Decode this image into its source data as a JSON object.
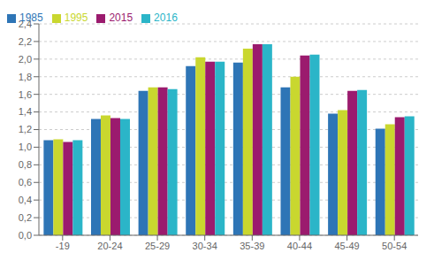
{
  "chart_data": {
    "type": "bar",
    "categories": [
      "-19",
      "20-24",
      "25-29",
      "30-34",
      "35-39",
      "40-44",
      "45-49",
      "50-54"
    ],
    "series": [
      {
        "name": "1985",
        "color": "#2E75B6",
        "values": [
          1.08,
          1.32,
          1.64,
          1.92,
          1.96,
          1.68,
          1.38,
          1.21
        ]
      },
      {
        "name": "1995",
        "color": "#C9D72F",
        "values": [
          1.09,
          1.36,
          1.68,
          2.02,
          2.12,
          1.8,
          1.42,
          1.26
        ]
      },
      {
        "name": "2015",
        "color": "#9B1B6E",
        "values": [
          1.06,
          1.33,
          1.68,
          1.97,
          2.17,
          2.04,
          1.64,
          1.34
        ]
      },
      {
        "name": "2016",
        "color": "#2BB5C8",
        "values": [
          1.08,
          1.32,
          1.66,
          1.97,
          2.17,
          2.05,
          1.65,
          1.35
        ]
      }
    ],
    "ylim": [
      0,
      2.4
    ],
    "yticks": [
      {
        "value": 0.0,
        "label": "0,0"
      },
      {
        "value": 0.2,
        "label": "0,2"
      },
      {
        "value": 0.4,
        "label": "0,4"
      },
      {
        "value": 0.6,
        "label": "0,6"
      },
      {
        "value": 0.8,
        "label": "0,8"
      },
      {
        "value": 1.0,
        "label": "1,0"
      },
      {
        "value": 1.2,
        "label": "1,2"
      },
      {
        "value": 1.4,
        "label": "1,4"
      },
      {
        "value": 1.6,
        "label": "1,6"
      },
      {
        "value": 1.8,
        "label": "1,8"
      },
      {
        "value": 2.0,
        "label": "2,0"
      },
      {
        "value": 2.2,
        "label": "2,2"
      },
      {
        "value": 2.4,
        "label": "2,4"
      }
    ],
    "grid": true,
    "legend": "upper left"
  }
}
